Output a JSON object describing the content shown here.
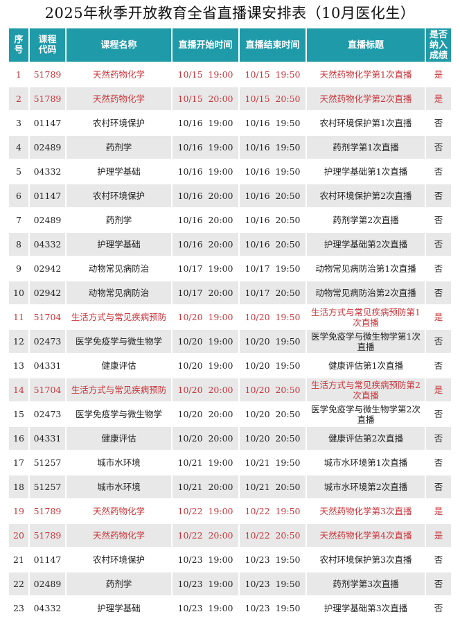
{
  "title": "2025年秋季开放教育全省直播课安排表（10月医化生）",
  "headers": [
    "序号",
    "课程代码",
    "课程名称",
    "直播开始时间",
    "直播结束时间",
    "直播标题",
    "是否纳入成绩"
  ],
  "header_lines": {
    "seq": [
      "序",
      "号"
    ],
    "code": [
      "课程",
      "代码"
    ],
    "graded": [
      "是否",
      "纳入",
      "成绩"
    ]
  },
  "colors": {
    "header": "#1f9aa8",
    "highlight_text": "#c8353a",
    "stripe": "#e8e8e8"
  },
  "rows": [
    [
      "1",
      "51789",
      "天然药物化学",
      "10/15  19:00",
      "10/15  19:50",
      "天然药物化学第1次直播",
      "是"
    ],
    [
      "2",
      "51789",
      "天然药物化学",
      "10/15  20:00",
      "10/15  20:50",
      "天然药物化学第2次直播",
      "是"
    ],
    [
      "3",
      "01147",
      "农村环境保护",
      "10/16  19:00",
      "10/16  19:50",
      "农村环境保护第1次直播",
      "否"
    ],
    [
      "4",
      "02489",
      "药剂学",
      "10/16  19:00",
      "10/16  19:50",
      "药剂学第1次直播",
      "否"
    ],
    [
      "5",
      "04332",
      "护理学基础",
      "10/16  19:00",
      "10/16  19:50",
      "护理学基础第1次直播",
      "否"
    ],
    [
      "6",
      "01147",
      "农村环境保护",
      "10/16  20:00",
      "10/16  20:50",
      "农村环境保护第2次直播",
      "否"
    ],
    [
      "7",
      "02489",
      "药剂学",
      "10/16  20:00",
      "10/16  20:50",
      "药剂学第2次直播",
      "否"
    ],
    [
      "8",
      "04332",
      "护理学基础",
      "10/16  20:00",
      "10/16  20:50",
      "护理学基础第2次直播",
      "否"
    ],
    [
      "9",
      "02942",
      "动物常见病防治",
      "10/17  19:00",
      "10/17  19:50",
      "动物常见病防治第1次直播",
      "否"
    ],
    [
      "10",
      "02942",
      "动物常见病防治",
      "10/17  20:00",
      "10/17  20:50",
      "动物常见病防治第2次直播",
      "否"
    ],
    [
      "11",
      "51704",
      "生活方式与常见疾病预防",
      "10/20  19:00",
      "10/20  19:50",
      "生活方式与常见疾病预防第1次直播",
      "是"
    ],
    [
      "12",
      "02473",
      "医学免疫学与微生物学",
      "10/20  19:00",
      "10/20  19:50",
      "医学免疫学与微生物学第1次直播",
      "否"
    ],
    [
      "13",
      "04331",
      "健康评估",
      "10/20  19:00",
      "10/20  19:50",
      "健康评估第1次直播",
      "否"
    ],
    [
      "14",
      "51704",
      "生活方式与常见疾病预防",
      "10/20  20:00",
      "10/20  20:50",
      "生活方式与常见疾病预防第2次直播",
      "是"
    ],
    [
      "15",
      "02473",
      "医学免疫学与微生物学",
      "10/20  20:00",
      "10/20  20:50",
      "医学免疫学与微生物学第2次直播",
      "否"
    ],
    [
      "16",
      "04331",
      "健康评估",
      "10/20  20:00",
      "10/20  20:50",
      "健康评估第2次直播",
      "否"
    ],
    [
      "17",
      "51257",
      "城市水环境",
      "10/21  19:00",
      "10/21  19:50",
      "城市水环境第1次直播",
      "否"
    ],
    [
      "18",
      "51257",
      "城市水环境",
      "10/21  20:00",
      "10/21  20:50",
      "城市水环境第2次直播",
      "否"
    ],
    [
      "19",
      "51789",
      "天然药物化学",
      "10/22  19:00",
      "10/22  19:50",
      "天然药物化学第3次直播",
      "是"
    ],
    [
      "20",
      "51789",
      "天然药物化学",
      "10/22  20:00",
      "10/22  20:50",
      "天然药物化学第4次直播",
      "是"
    ],
    [
      "21",
      "01147",
      "农村环境保护",
      "10/23  19:00",
      "10/23  19:50",
      "农村环境保护第3次直播",
      "否"
    ],
    [
      "22",
      "02489",
      "药剂学",
      "10/23  19:00",
      "10/23  19:50",
      "药剂学第3次直播",
      "否"
    ],
    [
      "23",
      "04332",
      "护理学基础",
      "10/23  19:00",
      "10/23  19:50",
      "护理学基础第3次直播",
      "否"
    ]
  ]
}
